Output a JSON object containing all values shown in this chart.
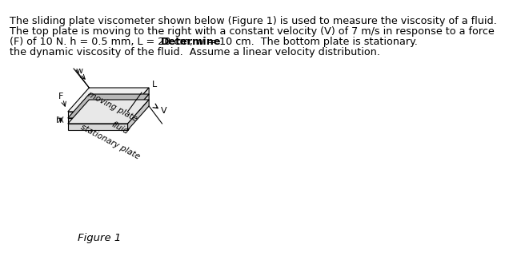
{
  "title": "Figure 1",
  "paragraph": "The sliding plate viscometer shown below (Figure 1) is used to measure the viscosity of a fluid.\nThe top plate is moving to the right with a constant velocity (V) of 7 m/s in response to a force\n(F) of 10 N. h = 0.5 mm, L = 20 cm, w = 10 cm.  The bottom plate is stationary. Determine\nthe dynamic viscosity of the fluid.  Assume a linear velocity distribution.",
  "bold_word": "Determine",
  "bg_color": "#ffffff",
  "text_color": "#000000",
  "diagram_color": "#000000",
  "font_size_text": 9.2,
  "font_size_label": 8.0,
  "font_size_title": 9.5
}
